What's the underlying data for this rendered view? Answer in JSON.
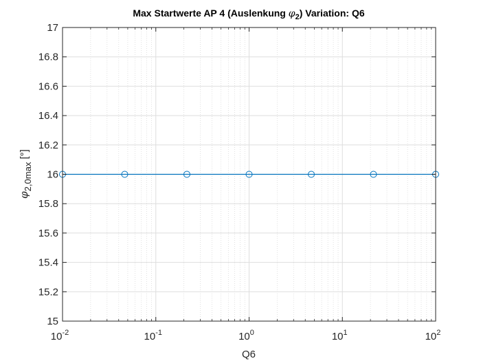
{
  "chart_data": {
    "type": "line",
    "title_parts": {
      "before": "Max Startwerte AP 4 (Auslenkung ",
      "symbol": "φ",
      "subscript": "2",
      "after": ")  Variation: Q6"
    },
    "xlabel": "Q6",
    "ylabel_parts": {
      "symbol": "φ",
      "subscript": "2,0max",
      "unit": " [°]"
    },
    "x_scale": "log",
    "xlim": [
      0.01,
      100
    ],
    "ylim": [
      15,
      17
    ],
    "grid": true,
    "minor_grid_x": true,
    "x_ticks": [
      {
        "base": "10",
        "exp": "-2"
      },
      {
        "base": "10",
        "exp": "-1"
      },
      {
        "base": "10",
        "exp": "0"
      },
      {
        "base": "10",
        "exp": "1"
      },
      {
        "base": "10",
        "exp": "2"
      }
    ],
    "x_tick_values": [
      0.01,
      0.1,
      1,
      10,
      100
    ],
    "y_ticks": [
      "15",
      "15.2",
      "15.4",
      "15.6",
      "15.8",
      "16",
      "16.2",
      "16.4",
      "16.6",
      "16.8",
      "17"
    ],
    "y_tick_values": [
      15,
      15.2,
      15.4,
      15.6,
      15.8,
      16,
      16.2,
      16.4,
      16.6,
      16.8,
      17
    ],
    "series": [
      {
        "x": [
          0.01,
          0.0464,
          0.2154,
          1,
          4.6416,
          21.544,
          100
        ],
        "y": [
          16,
          16,
          16,
          16,
          16,
          16,
          16
        ],
        "color": "#0072BD",
        "marker": "circle"
      }
    ]
  }
}
